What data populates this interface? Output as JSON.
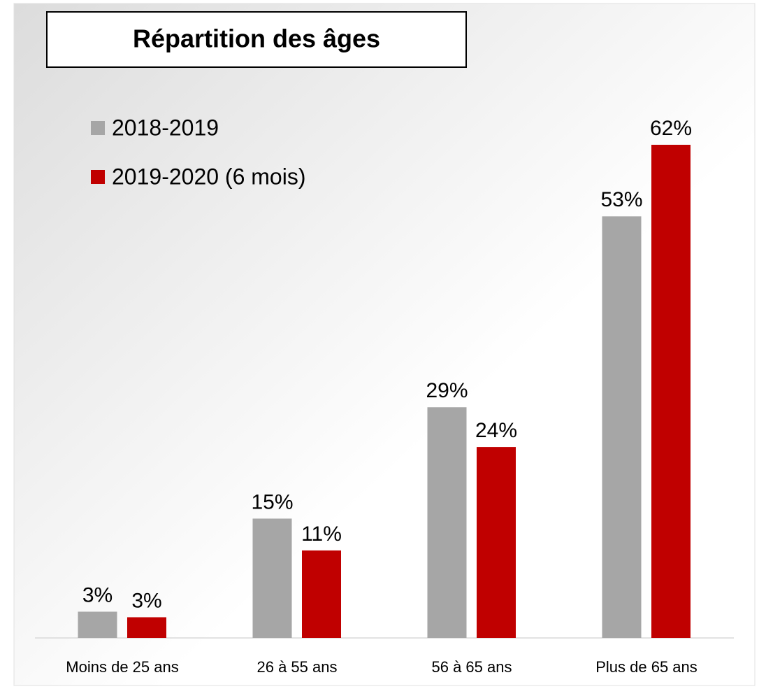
{
  "chart_data": {
    "type": "bar",
    "title": "Répartition des âges",
    "categories": [
      "Moins de 25 ans",
      "26 à 55 ans",
      "56 à 65 ans",
      "Plus de 65 ans"
    ],
    "series": [
      {
        "name": "2018-2019",
        "color": "#a6a6a6",
        "values": [
          3.3,
          15,
          29,
          53
        ],
        "value_labels": [
          "3%",
          "15%",
          "29%",
          "53%"
        ]
      },
      {
        "name": "2019-2020 (6 mois)",
        "color": "#c00000",
        "values": [
          2.6,
          11,
          24,
          62
        ],
        "value_labels": [
          "3%",
          "11%",
          "24%",
          "62%"
        ]
      }
    ],
    "ylim": [
      0,
      70
    ],
    "legend": "top-left"
  }
}
